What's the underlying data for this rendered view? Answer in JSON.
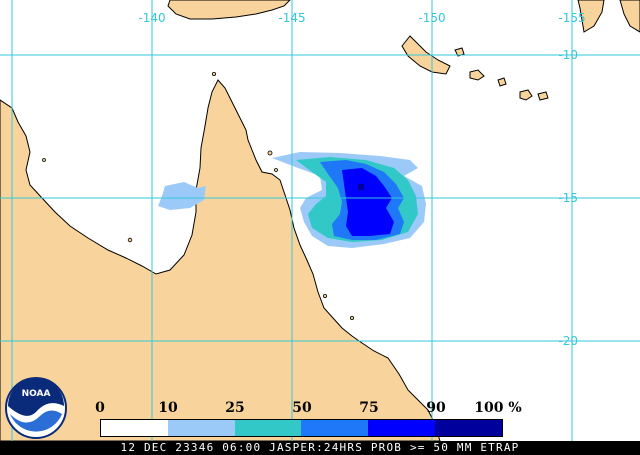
{
  "map": {
    "longitude_labels": [
      "-140",
      "-145",
      "-150",
      "-155"
    ],
    "latitude_labels": [
      "-10",
      "-15",
      "-20"
    ],
    "colors": {
      "land": "#f8d49c",
      "ocean": "#ffffff",
      "grid": "#33c8d8"
    }
  },
  "legend": {
    "numbers": [
      "0",
      "10",
      "25",
      "50",
      "75",
      "90",
      "100 %"
    ],
    "bins": [
      {
        "from": 0,
        "to": 10,
        "color": "#ffffff"
      },
      {
        "from": 10,
        "to": 25,
        "color": "#9ccaf8"
      },
      {
        "from": 25,
        "to": 50,
        "color": "#33c8c8"
      },
      {
        "from": 50,
        "to": 75,
        "color": "#1e78f8"
      },
      {
        "from": 75,
        "to": 90,
        "color": "#0000ff"
      },
      {
        "from": 90,
        "to": 100,
        "color": "#00009c"
      }
    ]
  },
  "caption": "12 DEC 23346 06:00 JASPER:24HRS PROB >= 50 MM ETRAP",
  "logo": {
    "text": "NOAA",
    "icon": "noaa-logo-icon"
  }
}
